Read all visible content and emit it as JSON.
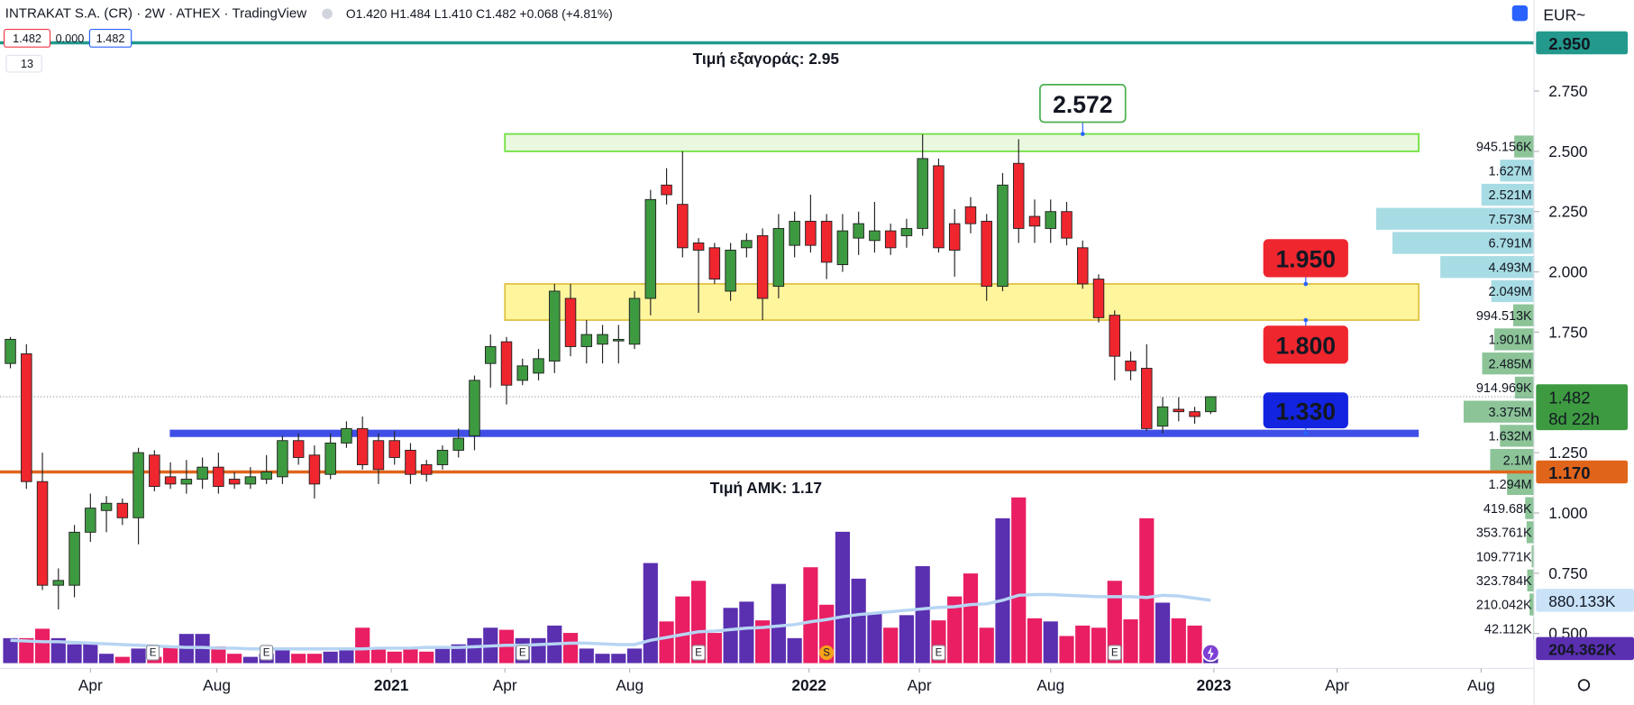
{
  "chart_data": {
    "type": "candlestick",
    "title": "INTRAKAT S.A. (CR) · 2W · ATHEX · TradingView",
    "ohlc_text": "O1.420 H1.484 L1.410 C1.482 +0.068 (+4.81%)",
    "badges": [
      "1.482",
      "0.000",
      "1.482"
    ],
    "indicator_count": "13",
    "currency": "EUR~",
    "up_color": "#3d9a40",
    "down_color": "#f0262e",
    "open": [
      1.62,
      1.66,
      1.13,
      0.7,
      0.7,
      0.92,
      1.01,
      1.04,
      0.98,
      1.24,
      1.15,
      1.12,
      1.14,
      1.19,
      1.14,
      1.12,
      1.14,
      1.15,
      1.3,
      1.24,
      1.16,
      1.29,
      1.35,
      1.3,
      1.3,
      1.26,
      1.2,
      1.2,
      1.26,
      1.32,
      1.62,
      1.71,
      1.55,
      1.58,
      1.63,
      1.89,
      1.69,
      1.7,
      1.72,
      1.7,
      1.89,
      2.36,
      2.28,
      2.12,
      2.1,
      1.92,
      2.1,
      2.15,
      1.94,
      2.11,
      2.21,
      2.21,
      2.03,
      2.14,
      2.13,
      2.17,
      2.15,
      2.18,
      2.44,
      2.2,
      2.27,
      2.21,
      1.94,
      2.45,
      2.23,
      2.18,
      2.25,
      2.1,
      1.97,
      1.82,
      1.63,
      1.6,
      1.36,
      1.43,
      1.42,
      1.42
    ],
    "high": [
      1.73,
      1.7,
      1.25,
      0.77,
      0.95,
      1.08,
      1.07,
      1.06,
      1.27,
      1.26,
      1.21,
      1.22,
      1.23,
      1.25,
      1.17,
      1.19,
      1.24,
      1.32,
      1.33,
      1.28,
      1.33,
      1.38,
      1.4,
      1.33,
      1.34,
      1.29,
      1.22,
      1.28,
      1.35,
      1.57,
      1.74,
      1.73,
      1.64,
      1.68,
      1.95,
      1.95,
      1.8,
      1.78,
      1.78,
      1.92,
      2.34,
      2.43,
      2.5,
      2.14,
      2.12,
      2.12,
      2.16,
      2.18,
      2.24,
      2.25,
      2.32,
      2.24,
      2.24,
      2.25,
      2.29,
      2.2,
      2.22,
      2.57,
      2.47,
      2.26,
      2.31,
      2.24,
      2.41,
      2.55,
      2.3,
      2.3,
      2.29,
      2.13,
      1.99,
      1.84,
      1.67,
      1.7,
      1.48,
      1.48,
      1.44,
      1.484
    ],
    "low": [
      1.6,
      1.1,
      0.68,
      0.6,
      0.65,
      0.88,
      0.92,
      0.95,
      0.87,
      1.09,
      1.1,
      1.08,
      1.1,
      1.08,
      1.1,
      1.1,
      1.12,
      1.12,
      1.2,
      1.06,
      1.14,
      1.27,
      1.18,
      1.12,
      1.2,
      1.12,
      1.13,
      1.18,
      1.23,
      1.26,
      1.52,
      1.45,
      1.53,
      1.55,
      1.58,
      1.65,
      1.62,
      1.62,
      1.62,
      1.68,
      1.82,
      2.28,
      2.06,
      1.83,
      1.95,
      1.88,
      2.06,
      1.8,
      1.89,
      2.06,
      2.08,
      1.97,
      2.0,
      2.07,
      2.08,
      2.07,
      2.1,
      2.15,
      2.08,
      1.98,
      2.16,
      1.88,
      1.92,
      2.12,
      2.12,
      2.12,
      2.11,
      1.93,
      1.79,
      1.55,
      1.55,
      1.34,
      1.33,
      1.38,
      1.37,
      1.41
    ],
    "close": [
      1.72,
      1.13,
      0.7,
      0.72,
      0.92,
      1.02,
      1.04,
      0.98,
      1.25,
      1.11,
      1.12,
      1.14,
      1.19,
      1.11,
      1.12,
      1.15,
      1.17,
      1.3,
      1.23,
      1.12,
      1.29,
      1.35,
      1.2,
      1.18,
      1.23,
      1.16,
      1.16,
      1.26,
      1.31,
      1.55,
      1.69,
      1.53,
      1.61,
      1.64,
      1.92,
      1.69,
      1.74,
      1.74,
      1.72,
      1.89,
      2.3,
      2.32,
      2.1,
      2.09,
      1.97,
      2.09,
      2.13,
      1.89,
      2.18,
      2.21,
      2.11,
      2.04,
      2.17,
      2.2,
      2.17,
      2.1,
      2.18,
      2.47,
      2.1,
      2.09,
      2.2,
      1.94,
      2.36,
      2.18,
      2.19,
      2.25,
      2.14,
      1.95,
      1.81,
      1.65,
      1.59,
      1.35,
      1.44,
      1.42,
      1.4,
      1.482
    ],
    "xlim": [
      -0.65,
      95.2
    ],
    "xticks": [
      {
        "value": 5.0,
        "label": "Apr"
      },
      {
        "value": 12.9,
        "label": "Aug"
      },
      {
        "value": 23.8,
        "label": "2021"
      },
      {
        "value": 30.9,
        "label": "Apr"
      },
      {
        "value": 38.7,
        "label": "Aug"
      },
      {
        "value": 49.9,
        "label": "2022"
      },
      {
        "value": 56.8,
        "label": "Apr"
      },
      {
        "value": 65.0,
        "label": "Aug"
      },
      {
        "value": 75.2,
        "label": "2023"
      },
      {
        "value": 82.9,
        "label": "Apr"
      },
      {
        "value": 91.9,
        "label": "Aug"
      }
    ],
    "ylim": [
      0.377,
      3.127
    ],
    "yticks": [
      {
        "value": 0.5,
        "label": "0.500"
      },
      {
        "value": 0.75,
        "label": "0.750"
      },
      {
        "value": 1.0,
        "label": "1.000"
      },
      {
        "value": 1.25,
        "label": "1.250"
      },
      {
        "value": 1.75,
        "label": "1.750"
      },
      {
        "value": 2.0,
        "label": "2.000"
      },
      {
        "value": 2.25,
        "label": "2.250"
      },
      {
        "value": 2.5,
        "label": "2.500"
      },
      {
        "value": 2.75,
        "label": "2.750"
      }
    ],
    "last_price": 1.482,
    "countdown": "8d 22h",
    "lines": [
      {
        "value": 2.95,
        "label": "2.950",
        "text": "Τιμή εξαγοράς: 2.95",
        "color": "#22998c"
      },
      {
        "value": 1.17,
        "label": "1.170",
        "text": "Τιμή ΑΜΚ: 1.17",
        "color": "#e0651b"
      }
    ],
    "zones": [
      {
        "from": 2.5,
        "to": 2.572,
        "start": 30.9,
        "end": 88.0,
        "color": "#e9f8df",
        "border": "#6be03a",
        "callouts": [
          {
            "value": 2.572,
            "label": "2.572"
          }
        ]
      },
      {
        "from": 1.8,
        "to": 1.95,
        "start": 30.9,
        "end": 88.0,
        "color": "#fff59d",
        "border": "#e0c040",
        "callouts": [
          {
            "value": 1.95,
            "label": "1.950"
          },
          {
            "value": 1.8,
            "label": "1.800"
          }
        ]
      }
    ],
    "support": {
      "value": 1.33,
      "label": "1.330",
      "start": 9.96,
      "end": 88.0,
      "color": "#3f4fe6"
    },
    "volume": {
      "values": [
        350000,
        350000,
        482000,
        350000,
        263000,
        277000,
        131000,
        88000,
        204000,
        88000,
        234000,
        409000,
        409000,
        234000,
        131000,
        88000,
        131000,
        204000,
        131000,
        131000,
        161000,
        204000,
        496000,
        204000,
        161000,
        204000,
        161000,
        204000,
        263000,
        350000,
        496000,
        467000,
        350000,
        350000,
        526000,
        423000,
        204000,
        131000,
        131000,
        204000,
        1402000,
        584000,
        934000,
        1153000,
        423000,
        774000,
        861000,
        599000,
        1110000,
        350000,
        1343000,
        818000,
        1840000,
        1183000,
        701000,
        496000,
        672000,
        1358000,
        599000,
        934000,
        1256000,
        496000,
        2029000,
        2321000,
        628000,
        584000,
        380000,
        526000,
        496000,
        1153000,
        613000,
        2029000,
        847000,
        628000,
        526000,
        204362
      ],
      "last_label": "204.362K",
      "up_color": "#5a2fb0",
      "down_color": "#e91e63",
      "ylim": [
        0,
        9285600
      ],
      "ma": {
        "values": [
          320000,
          310000,
          300000,
          300000,
          290000,
          280000,
          270000,
          260000,
          250000,
          240000,
          230000,
          220000,
          220000,
          210000,
          210000,
          200000,
          200000,
          200000,
          200000,
          200000,
          200000,
          200000,
          200000,
          210000,
          210000,
          210000,
          220000,
          220000,
          220000,
          230000,
          240000,
          250000,
          250000,
          260000,
          270000,
          280000,
          280000,
          270000,
          260000,
          260000,
          320000,
          360000,
          400000,
          440000,
          450000,
          470000,
          490000,
          500000,
          520000,
          540000,
          580000,
          610000,
          650000,
          680000,
          700000,
          720000,
          740000,
          760000,
          780000,
          790000,
          820000,
          830000,
          880000,
          950000,
          960000,
          960000,
          950000,
          940000,
          930000,
          930000,
          930000,
          920000,
          950000,
          940000,
          910000,
          880133
        ],
        "label": "880.133K",
        "color": "#b7d5f3"
      }
    },
    "profile": {
      "levels": [
        2.52,
        2.42,
        2.32,
        2.22,
        2.12,
        2.02,
        1.92,
        1.82,
        1.72,
        1.62,
        1.52,
        1.42,
        1.32,
        1.22,
        1.12,
        1.02,
        0.92,
        0.82,
        0.72,
        0.62,
        0.52
      ],
      "values": [
        945156,
        1627000,
        2521000,
        7573000,
        6791000,
        4493000,
        2049000,
        994513,
        1901000,
        2485000,
        914969,
        3375000,
        1632000,
        2100000,
        1294000,
        419680,
        353761,
        109771,
        323784,
        210042,
        42112
      ],
      "value_labels": [
        "945.156K",
        "1.627M",
        "2.521M",
        "7.573M",
        "6.791M",
        "4.493M",
        "2.049M",
        "994.513K",
        "1.901M",
        "2.485M",
        "914.969K",
        "3.375M",
        "1.632M",
        "2.1M",
        "1.294M",
        "419.68K",
        "353.761K",
        "109.771K",
        "323.784K",
        "210.042K",
        "42.112K"
      ],
      "colors": [
        "#8cc497",
        "#a8dce4",
        "#a8dce4",
        "#a8dce4",
        "#a8dce4",
        "#a8dce4",
        "#a8dce4",
        "#8cc497",
        "#8cc497",
        "#8cc497",
        "#8cc497",
        "#8cc497",
        "#8cc497",
        "#8cc497",
        "#8cc497",
        "#8cc497",
        "#8cc497",
        "#8cc497",
        "#8cc497",
        "#8cc497",
        "#8cc497"
      ],
      "xlim": [
        0,
        73600000
      ]
    },
    "events": [
      {
        "label": "E",
        "x": 8.9
      },
      {
        "label": "E",
        "x": 16.0
      },
      {
        "label": "E",
        "x": 32.0
      },
      {
        "label": "E",
        "x": 43.0
      },
      {
        "label": "S",
        "x": 51.0
      },
      {
        "label": "E",
        "x": 58.0
      },
      {
        "label": "E",
        "x": 69.0
      }
    ]
  }
}
